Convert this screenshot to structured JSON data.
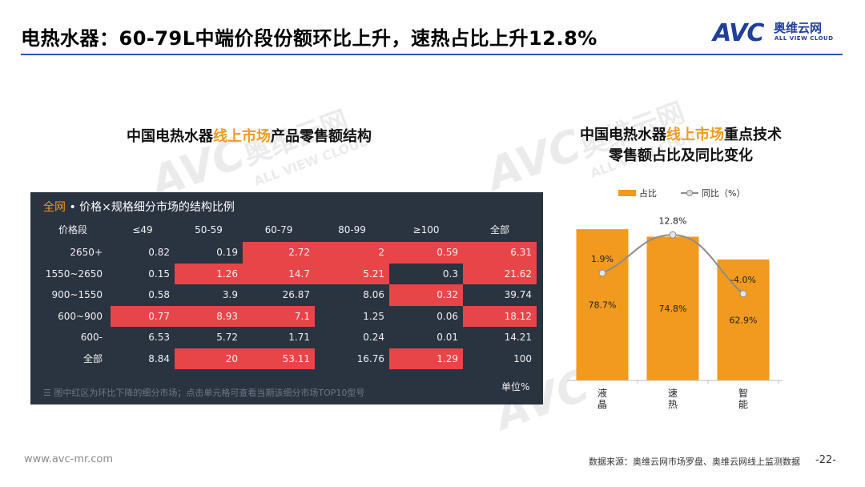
{
  "page": {
    "title": "电热水器：60-79L中端价段份额环比上升，速热占比上升12.8%",
    "logo_text": "AVC",
    "logo_cn": "奥维云网",
    "logo_en": "ALL VIEW CLOUD",
    "footer_url": "www.avc-mr.com",
    "footer_source": "数据来源：奥维云网市场罗盘、奥维云网线上监测数据",
    "page_number": "-22-"
  },
  "watermark": {
    "brand": "AVC",
    "cn": "奥维云网",
    "en": "ALL VIEW CLOUD"
  },
  "left_section": {
    "subtitle_pre": "中国电热水器",
    "subtitle_hl": "线上市场",
    "subtitle_post": "产品零售额结构"
  },
  "right_section": {
    "subtitle_line1_pre": "中国电热水器",
    "subtitle_line1_hl": "线上市场",
    "subtitle_line1_post": "重点技术",
    "subtitle_line2": "零售额占比及同比变化"
  },
  "table": {
    "title_prefix": "全网",
    "title_rest": " • 价格×规格细分市场的结构比例",
    "note": "图中红区为环比下降的细分市场；点击单元格可查看当期该细分市场TOP10型号",
    "unit": "单位%",
    "corner_label": "价格段",
    "columns": [
      "≤49",
      "50-59",
      "60-79",
      "80-99",
      "≥100",
      "全部"
    ],
    "rows": [
      {
        "label": "2650+",
        "values": [
          "0.82",
          "0.19",
          "2.72",
          "2",
          "0.59",
          "6.31"
        ]
      },
      {
        "label": "1550~2650",
        "values": [
          "0.15",
          "1.26",
          "14.7",
          "5.21",
          "0.3",
          "21.62"
        ]
      },
      {
        "label": "900~1550",
        "values": [
          "0.58",
          "3.9",
          "26.87",
          "8.06",
          "0.32",
          "39.74"
        ]
      },
      {
        "label": "600~900",
        "values": [
          "0.77",
          "8.93",
          "7.1",
          "1.25",
          "0.06",
          "18.12"
        ]
      },
      {
        "label": "600-",
        "values": [
          "6.53",
          "5.72",
          "1.71",
          "0.24",
          "0.01",
          "14.21"
        ]
      },
      {
        "label": "全部",
        "values": [
          "8.84",
          "20",
          "53.11",
          "16.76",
          "1.29",
          "100"
        ]
      }
    ],
    "highlight": [
      [
        false,
        false,
        true,
        true,
        true,
        true
      ],
      [
        false,
        true,
        true,
        true,
        false,
        true
      ],
      [
        false,
        false,
        false,
        false,
        true,
        false
      ],
      [
        true,
        true,
        true,
        false,
        false,
        true
      ],
      [
        false,
        false,
        false,
        false,
        false,
        false
      ],
      [
        false,
        true,
        true,
        false,
        true,
        false
      ]
    ],
    "highlight_color": "#e84549",
    "background_color": "#2a3340"
  },
  "chart_data": {
    "type": "bar",
    "categories": [
      "液晶",
      "速热",
      "智能"
    ],
    "series": [
      {
        "name": "占比",
        "kind": "bar",
        "values": [
          78.7,
          74.8,
          62.9
        ],
        "labels": [
          "78.7%",
          "74.8%",
          "62.9%"
        ],
        "color": "#f29a1e"
      },
      {
        "name": "同比（%）",
        "kind": "line",
        "values": [
          1.9,
          12.8,
          -4.0
        ],
        "labels": [
          "1.9%",
          "12.8%",
          "-4.0%"
        ],
        "color": "#8c8c8c"
      }
    ],
    "legend_position": "top",
    "grid": false
  }
}
